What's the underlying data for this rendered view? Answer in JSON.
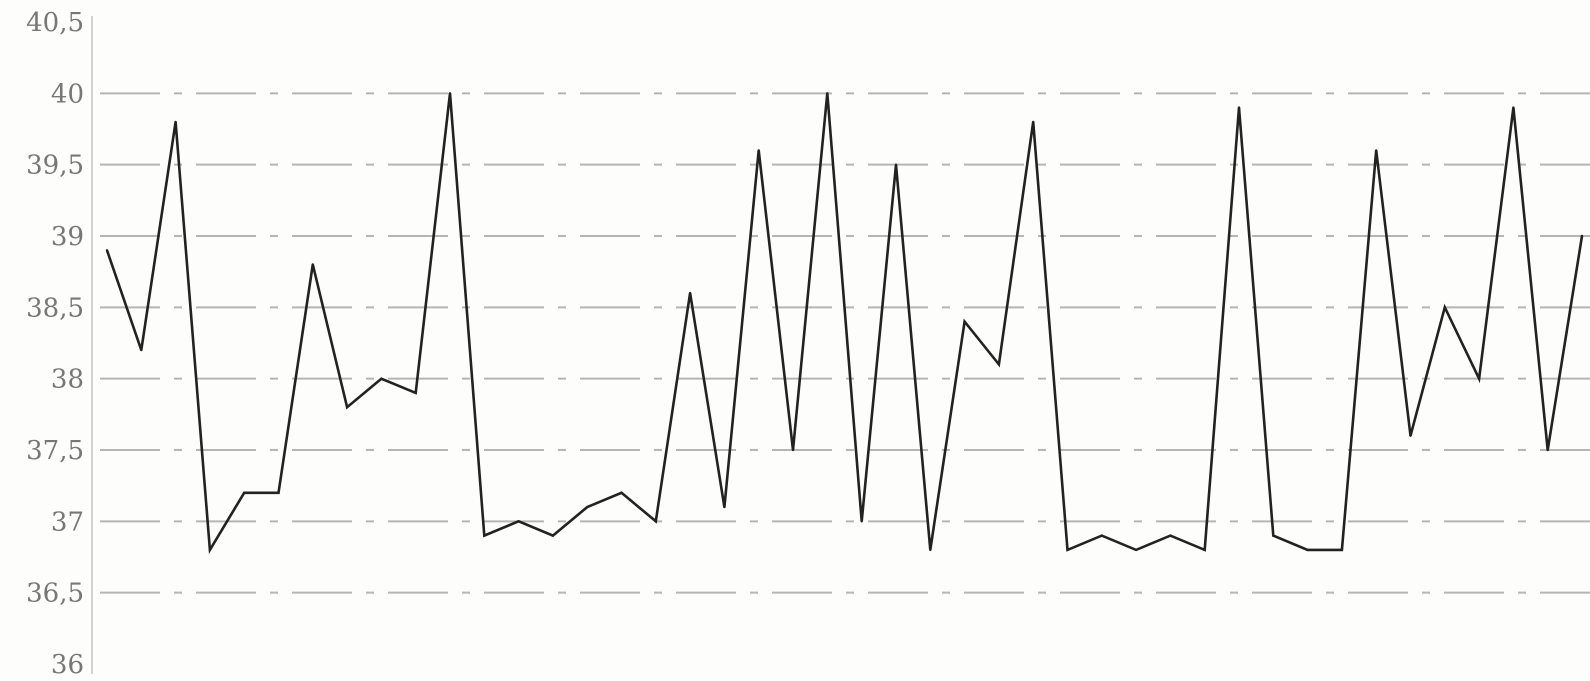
{
  "chart_data": {
    "type": "line",
    "title": "",
    "xlabel": "",
    "ylabel": "",
    "ylim": [
      36,
      40.5
    ],
    "y_ticks": [
      "36",
      "36,5",
      "37",
      "37,5",
      "38",
      "38,5",
      "39",
      "39,5",
      "40",
      "40,5"
    ],
    "grid": "horizontal dashed",
    "legend": "none",
    "colors": {
      "line": "#222222",
      "grid": "#b5b5b5",
      "tick_text": "#777777"
    },
    "series": [
      {
        "x": [
          1,
          2,
          3,
          4,
          5,
          6,
          7,
          8,
          9,
          10,
          11,
          12,
          13,
          14,
          15,
          16,
          17,
          18,
          19,
          20,
          21,
          22,
          23,
          24,
          25,
          26,
          27,
          28,
          29,
          30,
          31,
          32,
          33,
          34,
          35,
          36,
          37,
          38,
          39,
          40,
          41,
          42,
          43,
          44
        ],
        "values": [
          38.9,
          38.2,
          39.8,
          36.8,
          37.2,
          37.2,
          38.8,
          37.8,
          38.0,
          37.9,
          40.0,
          36.9,
          37.0,
          36.9,
          37.1,
          37.2,
          37.0,
          38.6,
          37.1,
          39.6,
          37.5,
          40.0,
          37.0,
          39.5,
          36.8,
          38.4,
          38.1,
          39.8,
          36.8,
          36.9,
          36.8,
          36.9,
          36.8,
          39.9,
          36.9,
          36.8,
          36.8,
          39.6,
          37.6,
          38.5,
          38.0,
          39.9,
          37.5,
          39.0
        ]
      }
    ]
  }
}
